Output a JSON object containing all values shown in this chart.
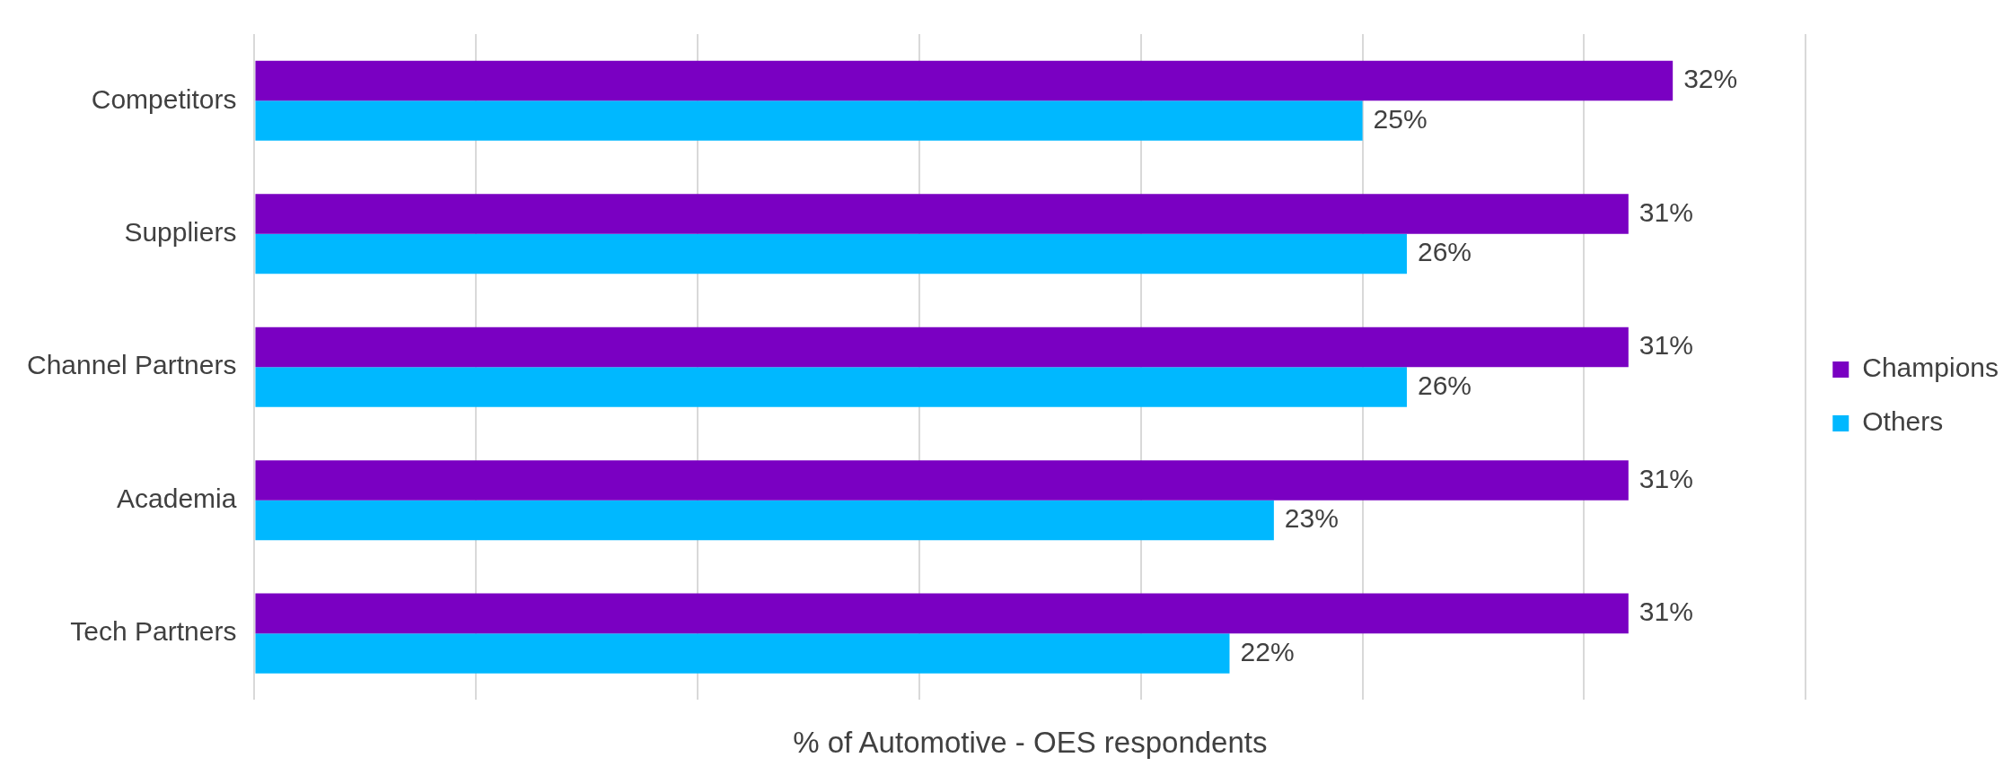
{
  "chart_data": {
    "type": "bar",
    "orientation": "horizontal",
    "xlabel": "% of Automotive - OES respondents",
    "categories": [
      "Competitors",
      "Suppliers",
      "Channel Partners",
      "Academia",
      "Tech Partners"
    ],
    "series": [
      {
        "name": "Champions",
        "color": "#7a00c2",
        "values": [
          32,
          31,
          31,
          31,
          31
        ],
        "value_labels": [
          "32%",
          "31%",
          "31%",
          "31%",
          "31%"
        ]
      },
      {
        "name": "Others",
        "color": "#00b8ff",
        "values": [
          25,
          26,
          26,
          23,
          22
        ],
        "value_labels": [
          "25%",
          "26%",
          "26%",
          "23%",
          "22%"
        ]
      }
    ],
    "xlim": [
      0,
      35
    ],
    "xticks": [
      {
        "value": 0,
        "label": null
      },
      {
        "value": 5,
        "label": null
      },
      {
        "value": 10,
        "label": null
      },
      {
        "value": 15,
        "label": null
      },
      {
        "value": 20,
        "label": null
      },
      {
        "value": 25,
        "label": null
      },
      {
        "value": 30,
        "label": null
      },
      {
        "value": 35,
        "label": null
      }
    ],
    "grid": "x",
    "legend": "right",
    "tick_labels": "y"
  }
}
